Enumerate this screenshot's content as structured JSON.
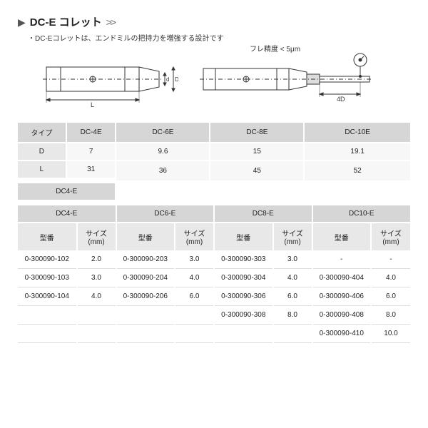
{
  "header": {
    "arrow": "▶",
    "title": "DC-E コレット",
    "chevrons": ">>",
    "subtitle": "・DC-Eコレットは、エンドミルの把持力を増強する設計です"
  },
  "diagram": {
    "runout_label": "フレ精度 < 5μm",
    "dim_L": "L",
    "dim_d": "d",
    "dim_D": "D",
    "dim_4D": "4D"
  },
  "spec_table": {
    "headers": [
      "タイプ",
      "DC-4E",
      "DC-6E",
      "DC-8E",
      "DC-10E"
    ],
    "rows": [
      {
        "label": "D",
        "vals": [
          "7",
          "9.6",
          "15",
          "19.1"
        ]
      },
      {
        "label": "L",
        "vals": [
          "31",
          "36",
          "45",
          "52"
        ]
      }
    ]
  },
  "part_table": {
    "groups": [
      "DC4-E",
      "DC6-E",
      "DC8-E",
      "DC10-E"
    ],
    "sub_headers": [
      "型番",
      "サイズ(mm)"
    ],
    "rows": [
      [
        {
          "pn": "0-300090-102",
          "sz": "2.0"
        },
        {
          "pn": "0-300090-203",
          "sz": "3.0"
        },
        {
          "pn": "0-300090-303",
          "sz": "3.0"
        },
        {
          "pn": "-",
          "sz": "-"
        }
      ],
      [
        {
          "pn": "0-300090-103",
          "sz": "3.0"
        },
        {
          "pn": "0-300090-204",
          "sz": "4.0"
        },
        {
          "pn": "0-300090-304",
          "sz": "4.0"
        },
        {
          "pn": "0-300090-404",
          "sz": "4.0"
        }
      ],
      [
        {
          "pn": "0-300090-104",
          "sz": "4.0"
        },
        {
          "pn": "0-300090-206",
          "sz": "6.0"
        },
        {
          "pn": "0-300090-306",
          "sz": "6.0"
        },
        {
          "pn": "0-300090-406",
          "sz": "6.0"
        }
      ],
      [
        {
          "pn": "",
          "sz": ""
        },
        {
          "pn": "",
          "sz": ""
        },
        {
          "pn": "0-300090-308",
          "sz": "8.0"
        },
        {
          "pn": "0-300090-408",
          "sz": "8.0"
        }
      ],
      [
        {
          "pn": "",
          "sz": ""
        },
        {
          "pn": "",
          "sz": ""
        },
        {
          "pn": "",
          "sz": ""
        },
        {
          "pn": "0-300090-410",
          "sz": "10.0"
        }
      ]
    ]
  },
  "colors": {
    "outline": "#333333",
    "hatch": "#888888",
    "header_bg": "#d6d6d6",
    "sub_bg": "#e8e8e8",
    "row_bg": "#f7f7f7"
  }
}
